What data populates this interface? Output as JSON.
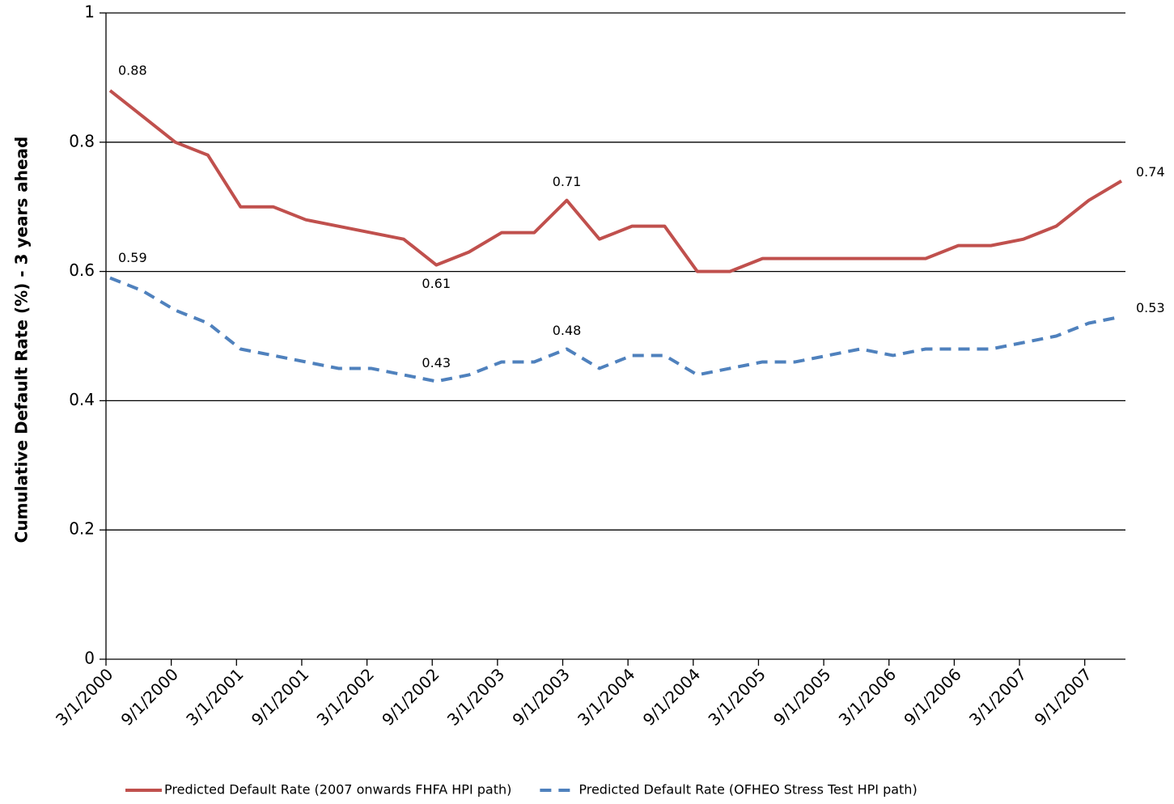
{
  "chart_data": {
    "type": "line",
    "y_label": "Cumulative Default Rate (%) - 3 years ahead",
    "categories": [
      "3/1/2000",
      null,
      "9/1/2000",
      null,
      "3/1/2001",
      null,
      "9/1/2001",
      null,
      "3/1/2002",
      null,
      "9/1/2002",
      null,
      "3/1/2003",
      null,
      "9/1/2003",
      null,
      "3/1/2004",
      null,
      "9/1/2004",
      null,
      "3/1/2005",
      null,
      "9/1/2005",
      null,
      "3/1/2006",
      null,
      "9/1/2006",
      null,
      "3/1/2007",
      null,
      "9/1/2007",
      null
    ],
    "series": [
      {
        "name": "Predicted Default Rate (2007 onwards FHFA HPI path)",
        "color": "#c0504d",
        "dashed": false,
        "values": [
          0.88,
          0.84,
          0.8,
          0.78,
          0.7,
          0.7,
          0.68,
          0.67,
          0.66,
          0.65,
          0.61,
          0.63,
          0.66,
          0.66,
          0.71,
          0.65,
          0.67,
          0.67,
          0.6,
          0.6,
          0.62,
          0.62,
          0.62,
          0.62,
          0.62,
          0.62,
          0.64,
          0.64,
          0.65,
          0.67,
          0.71,
          0.74
        ],
        "value_labels": [
          "0.88",
          null,
          null,
          null,
          null,
          null,
          null,
          null,
          null,
          null,
          "0.61",
          null,
          null,
          null,
          "0.71",
          null,
          null,
          null,
          null,
          null,
          null,
          null,
          null,
          null,
          null,
          null,
          null,
          null,
          null,
          null,
          null,
          "0.74"
        ]
      },
      {
        "name": "Predicted Default Rate (OFHEO Stress Test HPI path)",
        "color": "#4f81bd",
        "dashed": true,
        "values": [
          0.59,
          0.57,
          0.54,
          0.52,
          0.48,
          0.47,
          0.46,
          0.45,
          0.45,
          0.44,
          0.43,
          0.44,
          0.46,
          0.46,
          0.48,
          0.45,
          0.47,
          0.47,
          0.44,
          0.45,
          0.46,
          0.46,
          0.47,
          0.48,
          0.47,
          0.48,
          0.48,
          0.48,
          0.49,
          0.5,
          0.52,
          0.53
        ],
        "value_labels": [
          "0.59",
          null,
          null,
          null,
          null,
          null,
          null,
          null,
          null,
          null,
          "0.43",
          null,
          null,
          null,
          "0.48",
          null,
          null,
          null,
          null,
          null,
          null,
          null,
          null,
          null,
          null,
          null,
          null,
          null,
          null,
          null,
          null,
          "0.53"
        ]
      }
    ],
    "ylim": [
      0,
      1
    ],
    "yticks": [
      0,
      0.2,
      0.4,
      0.6,
      0.8,
      1
    ],
    "grid": true,
    "legend": "bottom"
  }
}
